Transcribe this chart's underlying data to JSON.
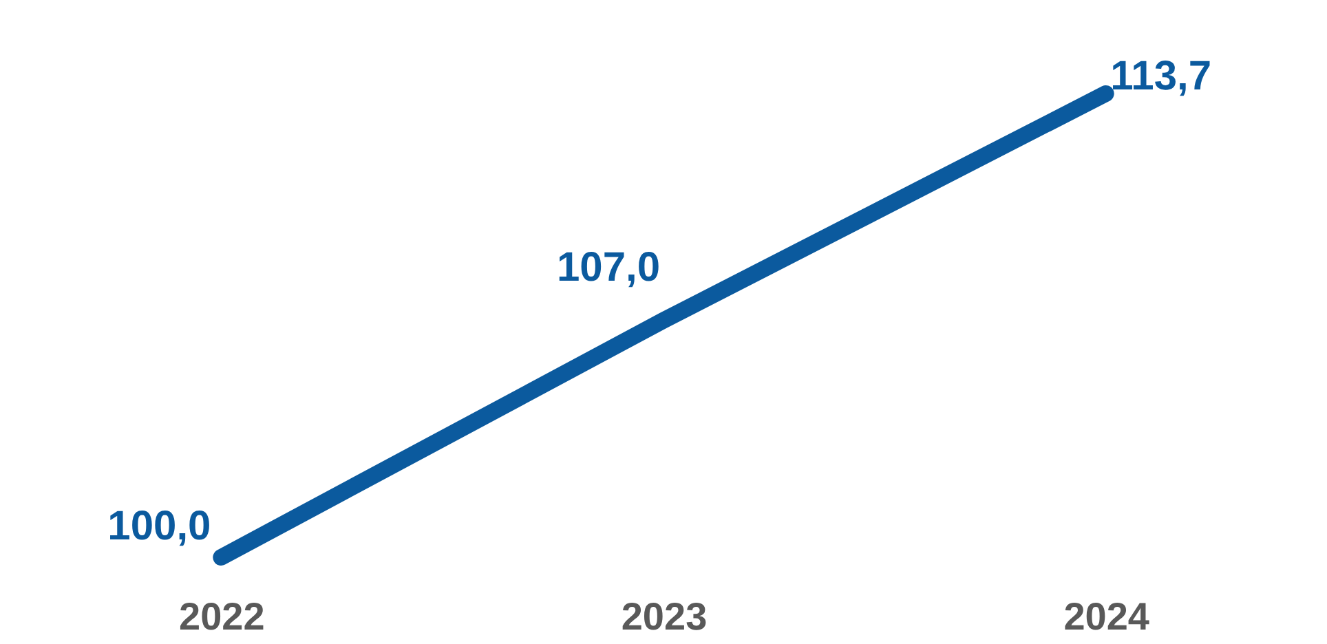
{
  "chart_data": {
    "type": "line",
    "categories": [
      "2022",
      "2023",
      "2024"
    ],
    "series": [
      {
        "color": "#0b5a9e",
        "values": [
          100.0,
          107.0,
          113.7
        ],
        "value_labels": [
          "100,0",
          "107,0",
          "113,7"
        ]
      }
    ],
    "grid": false,
    "tick_labels": "x",
    "marker": "none",
    "line_style": "solid"
  }
}
